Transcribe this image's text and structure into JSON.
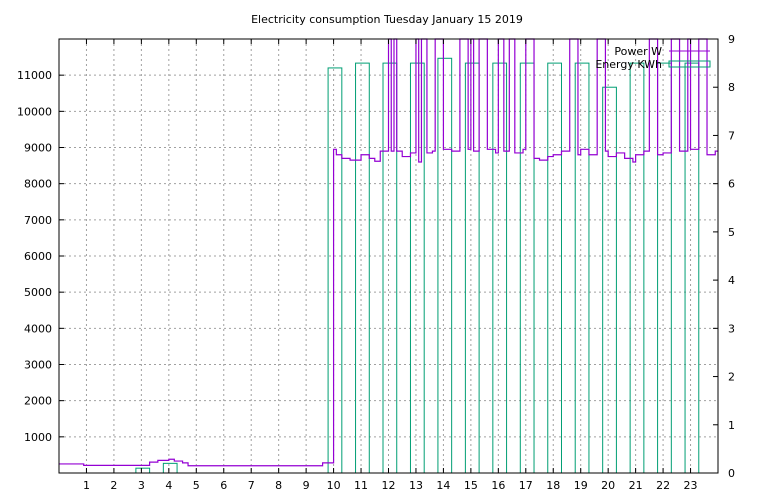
{
  "chart_data": {
    "type": "line",
    "title": "Electricity consumption Tuesday January 15 2019",
    "xlabel": "",
    "ylabel": "",
    "y2label": "",
    "grid": true,
    "legend_position": "top-right",
    "xlim": [
      0,
      24
    ],
    "ylim": [
      0,
      12000
    ],
    "y2lim": [
      0,
      9
    ],
    "x_ticks": [
      1,
      2,
      3,
      4,
      5,
      6,
      7,
      8,
      9,
      10,
      11,
      12,
      13,
      14,
      15,
      16,
      17,
      18,
      19,
      20,
      21,
      22,
      23
    ],
    "y_ticks": [
      1000,
      2000,
      3000,
      4000,
      5000,
      6000,
      7000,
      8000,
      9000,
      10000,
      11000
    ],
    "y2_ticks": [
      0,
      1,
      2,
      3,
      4,
      5,
      6,
      7,
      8,
      9
    ],
    "series": [
      {
        "name": "Power W",
        "axis": "left",
        "style": "steps",
        "color": "#9400d3",
        "x": [
          0.0,
          0.9,
          3.0,
          3.3,
          3.6,
          4.0,
          4.2,
          4.5,
          4.7,
          5.0,
          6.0,
          7.0,
          8.0,
          9.0,
          9.6,
          10.0,
          10.1,
          10.3,
          10.6,
          11.0,
          11.3,
          11.5,
          11.7,
          12.0,
          12.1,
          12.2,
          12.3,
          12.5,
          12.8,
          13.0,
          13.1,
          13.2,
          13.4,
          13.6,
          13.7,
          13.8,
          14.0,
          14.3,
          14.6,
          14.9,
          15.0,
          15.1,
          15.3,
          15.6,
          15.9,
          16.0,
          16.2,
          16.4,
          16.6,
          16.9,
          17.0,
          17.3,
          17.5,
          17.8,
          18.0,
          18.3,
          18.6,
          18.9,
          19.0,
          19.3,
          19.6,
          19.9,
          20.0,
          20.3,
          20.6,
          20.9,
          21.0,
          21.3,
          21.5,
          21.8,
          22.0,
          22.3,
          22.6,
          22.9,
          23.0,
          23.3,
          23.6,
          23.9
        ],
        "y": [
          250,
          210,
          210,
          300,
          350,
          380,
          330,
          280,
          200,
          200,
          200,
          200,
          200,
          200,
          280,
          8950,
          8800,
          8700,
          8650,
          8800,
          8700,
          8620,
          8900,
          12000,
          8900,
          12000,
          8900,
          8750,
          8850,
          12000,
          8600,
          12000,
          8850,
          8900,
          12000,
          12000,
          8950,
          8900,
          12000,
          8950,
          12000,
          8900,
          12000,
          8950,
          8850,
          12000,
          8900,
          12000,
          8850,
          8950,
          12000,
          8700,
          8650,
          8750,
          8800,
          8900,
          12000,
          8800,
          8950,
          8800,
          12000,
          8900,
          8750,
          8850,
          8700,
          8600,
          8800,
          8900,
          12000,
          8800,
          8850,
          12000,
          8900,
          12000,
          8950,
          12000,
          8800,
          8900
        ]
      },
      {
        "name": "Energy KWh",
        "axis": "right",
        "style": "impulse-boxes",
        "color": "#009e73",
        "bars": [
          {
            "x0": 2.8,
            "x1": 3.3,
            "y": 0.1
          },
          {
            "x0": 3.8,
            "x1": 4.3,
            "y": 0.2
          },
          {
            "x0": 9.8,
            "x1": 10.3,
            "y": 8.4
          },
          {
            "x0": 10.8,
            "x1": 11.3,
            "y": 8.5
          },
          {
            "x0": 11.8,
            "x1": 12.3,
            "y": 8.5
          },
          {
            "x0": 12.8,
            "x1": 13.3,
            "y": 8.5
          },
          {
            "x0": 13.8,
            "x1": 14.3,
            "y": 8.6
          },
          {
            "x0": 14.8,
            "x1": 15.3,
            "y": 8.5
          },
          {
            "x0": 15.8,
            "x1": 16.3,
            "y": 8.5
          },
          {
            "x0": 16.8,
            "x1": 17.3,
            "y": 8.5
          },
          {
            "x0": 17.8,
            "x1": 18.3,
            "y": 8.5
          },
          {
            "x0": 18.8,
            "x1": 19.3,
            "y": 8.5
          },
          {
            "x0": 19.8,
            "x1": 20.3,
            "y": 8.0
          },
          {
            "x0": 20.8,
            "x1": 21.3,
            "y": 8.5
          },
          {
            "x0": 21.8,
            "x1": 22.3,
            "y": 8.5
          },
          {
            "x0": 22.8,
            "x1": 23.3,
            "y": 8.5
          }
        ]
      }
    ]
  }
}
